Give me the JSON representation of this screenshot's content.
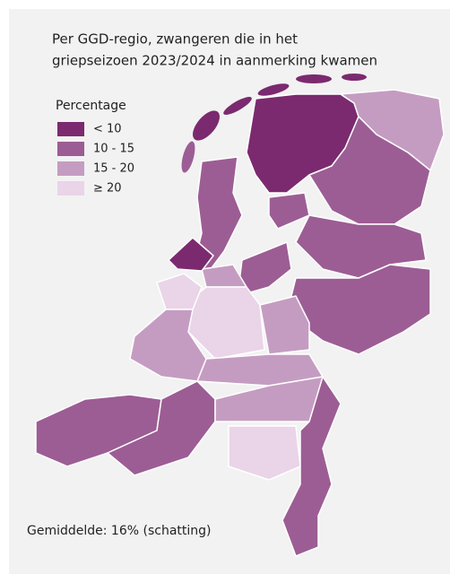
{
  "title": [
    "Per GGD-regio, zwangeren die in het",
    "griepseizoen 2023/2024 in aanmerking kwamen"
  ],
  "legend": {
    "title": "Percentage",
    "items": [
      {
        "label": "< 10",
        "color": "#7b2a6f"
      },
      {
        "label": "10 - 15",
        "color": "#9c5d94"
      },
      {
        "label": "15 - 20",
        "color": "#c59cc1"
      },
      {
        "label": "≥ 20",
        "color": "#ead4e8"
      }
    ]
  },
  "footnote": "Gemiddelde: 16% (schatting)"
}
